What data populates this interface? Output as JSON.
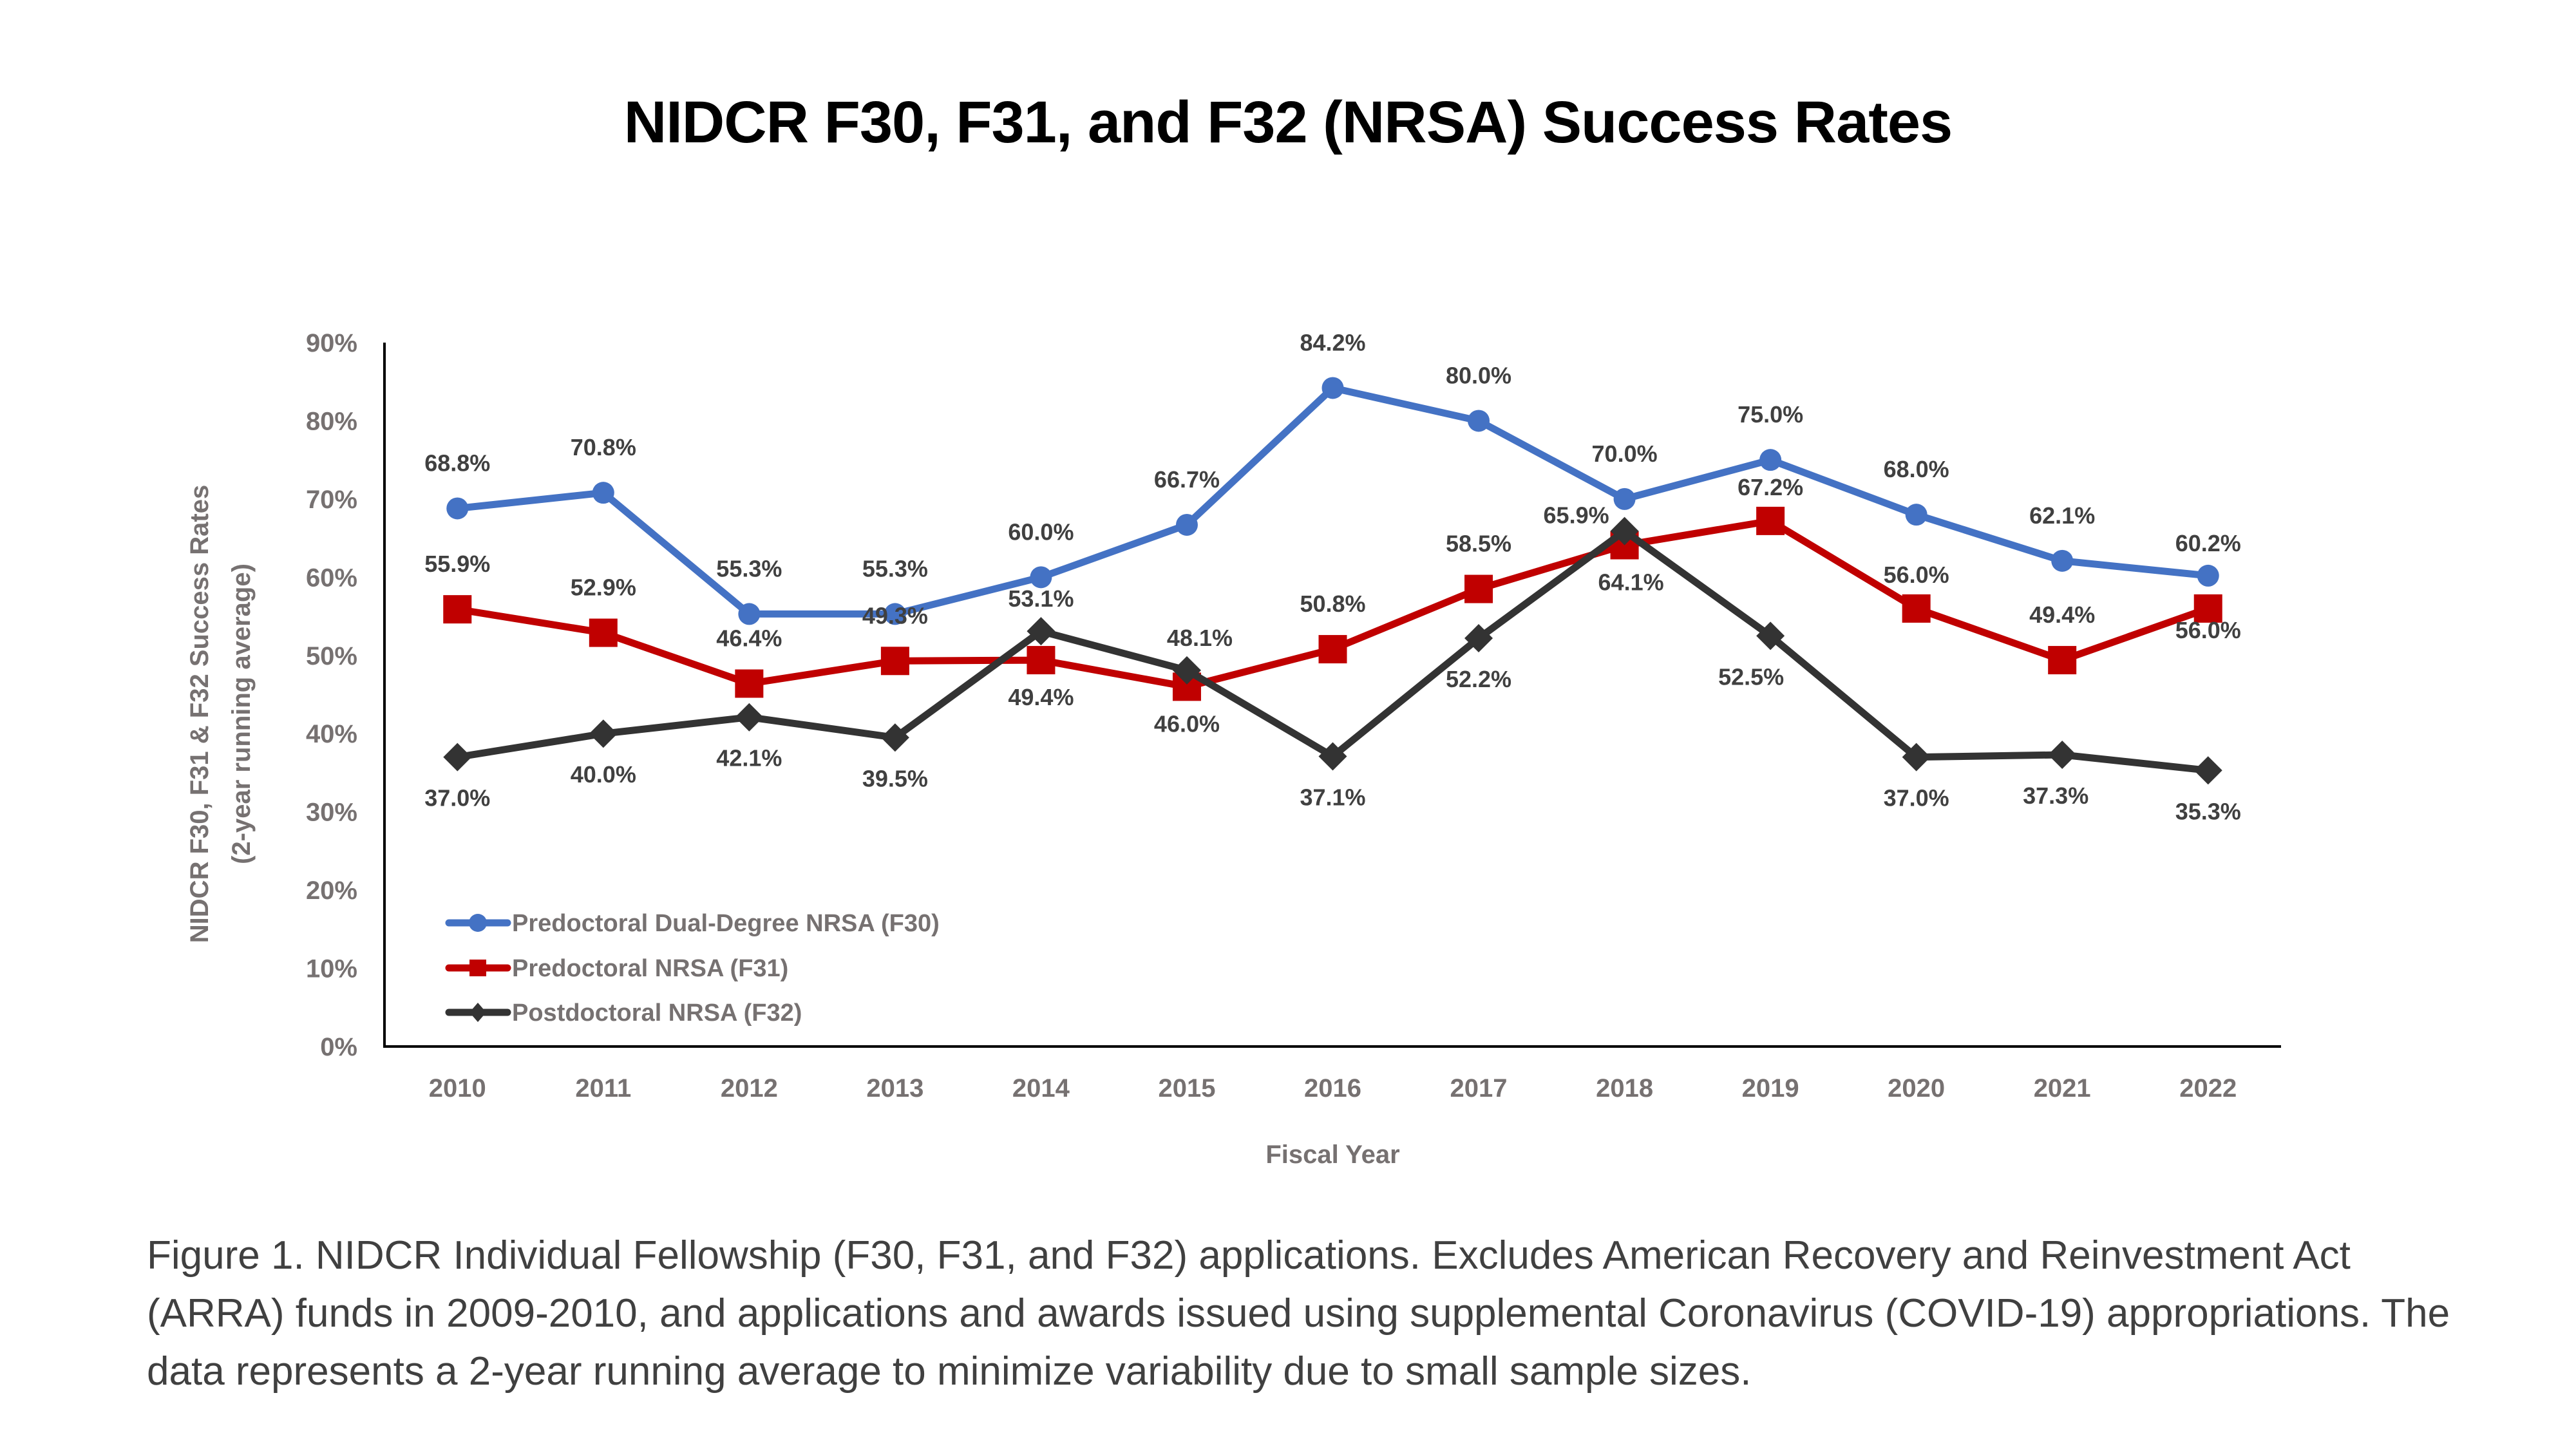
{
  "title": "NIDCR F30, F31, and F32 (NRSA) Success Rates",
  "caption": "Figure 1. NIDCR Individual Fellowship (F30, F31, and F32) applications. Excludes American Recovery and Reinvestment Act (ARRA) funds in 2009-2010, and applications and awards issued using supplemental Coronavirus (COVID-19) appropriations. The data represents a 2-year running average to minimize variability due to small sample sizes.",
  "chart_data": {
    "type": "line",
    "title": "NIDCR F30, F31, and F32 (NRSA) Success Rates",
    "xlabel": "Fiscal Year",
    "ylabel": "NIDCR F30, F31 & F32 Success Rates",
    "ylabel_line2": "(2-year running average)",
    "categories": [
      "2010",
      "2011",
      "2012",
      "2013",
      "2014",
      "2015",
      "2016",
      "2017",
      "2018",
      "2019",
      "2020",
      "2021",
      "2022"
    ],
    "ylim": [
      0,
      90
    ],
    "yticks": [
      0,
      10,
      20,
      30,
      40,
      50,
      60,
      70,
      80,
      90
    ],
    "ytick_labels": [
      "0%",
      "10%",
      "20%",
      "30%",
      "40%",
      "50%",
      "60%",
      "70%",
      "80%",
      "90%"
    ],
    "grid": false,
    "legend_position": "bottom-left",
    "series": [
      {
        "name": "Predoctoral Dual-Degree NRSA (F30)",
        "marker": "circle",
        "color": "#4472C4",
        "values": [
          68.8,
          70.8,
          55.3,
          55.3,
          60.0,
          66.7,
          84.2,
          80.0,
          70.0,
          75.0,
          68.0,
          62.1,
          60.2
        ],
        "labels": [
          "68.8%",
          "70.8%",
          "55.3%",
          "55.3%",
          "60.0%",
          "66.7%",
          "84.2%",
          "80.0%",
          "70.0%",
          "75.0%",
          "68.0%",
          "62.1%",
          "60.2%"
        ]
      },
      {
        "name": "Predoctoral NRSA (F31)",
        "marker": "square",
        "color": "#C00000",
        "values": [
          55.9,
          52.9,
          46.4,
          49.3,
          49.4,
          46.0,
          50.8,
          58.5,
          64.1,
          67.2,
          56.0,
          49.4,
          56.0
        ],
        "labels": [
          "55.9%",
          "52.9%",
          "46.4%",
          "49.3%",
          "49.4%",
          "46.0%",
          "50.8%",
          "58.5%",
          "64.1%",
          "67.2%",
          "56.0%",
          "49.4%",
          "56.0%"
        ]
      },
      {
        "name": "Postdoctoral NRSA (F32)",
        "marker": "diamond",
        "color": "#333333",
        "values": [
          37.0,
          40.0,
          42.1,
          39.5,
          53.1,
          48.1,
          37.1,
          52.2,
          65.9,
          52.5,
          37.0,
          37.3,
          35.3
        ],
        "labels": [
          "37.0%",
          "40.0%",
          "42.1%",
          "39.5%",
          "53.1%",
          "48.1%",
          "37.1%",
          "52.2%",
          "65.9%",
          "52.5%",
          "37.0%",
          "37.3%",
          "35.3%"
        ]
      }
    ]
  }
}
